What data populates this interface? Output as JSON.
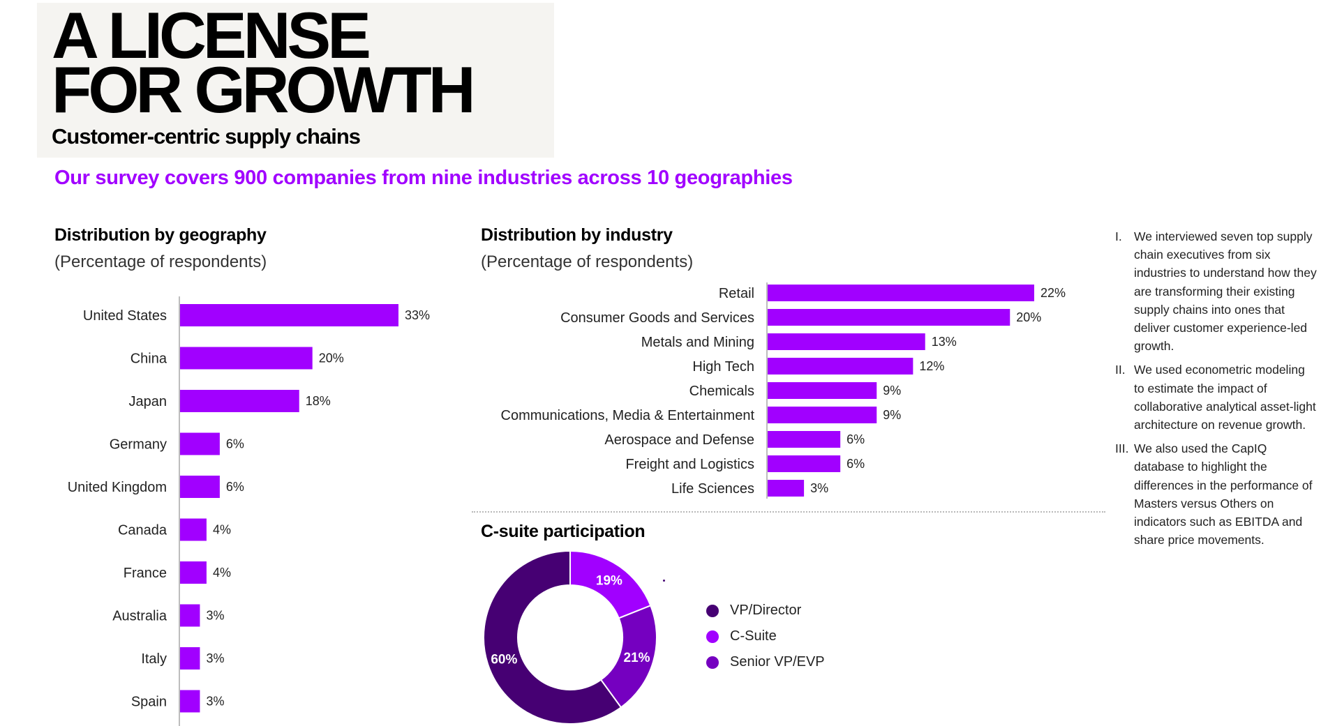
{
  "header": {
    "title_line1": "A LICENSE",
    "title_line2": "FOR GROWTH",
    "subtitle": "Customer-centric supply chains",
    "headline": "Our survey covers 900 companies from nine industries across 10 geographies"
  },
  "colors": {
    "bar": "#a100ff",
    "vp_director": "#460073",
    "c_suite": "#a100ff",
    "senior_vp": "#7500c0",
    "headline": "#a100ff"
  },
  "chart_data": [
    {
      "type": "bar",
      "orientation": "horizontal",
      "title": "Distribution by geography",
      "subtitle": "(Percentage of respondents)",
      "categories": [
        "United States",
        "China",
        "Japan",
        "Germany",
        "United Kingdom",
        "Canada",
        "France",
        "Australia",
        "Italy",
        "Spain"
      ],
      "values": [
        33,
        20,
        18,
        6,
        6,
        4,
        4,
        3,
        3,
        3
      ],
      "labels": [
        "33%",
        "20%",
        "18%",
        "6%",
        "6%",
        "4%",
        "4%",
        "3%",
        "3%",
        "3%"
      ],
      "xlim": [
        0,
        33
      ]
    },
    {
      "type": "bar",
      "orientation": "horizontal",
      "title": "Distribution by industry",
      "subtitle": "(Percentage of respondents)",
      "categories": [
        "Retail",
        "Consumer Goods and Services",
        "Metals and Mining",
        "High Tech",
        "Chemicals",
        "Communications, Media & Entertainment",
        "Aerospace and Defense",
        "Freight and Logistics",
        "Life Sciences"
      ],
      "values": [
        22,
        20,
        13,
        12,
        9,
        9,
        6,
        6,
        3
      ],
      "labels": [
        "22%",
        "20%",
        "13%",
        "12%",
        "9%",
        "9%",
        "6%",
        "6%",
        "3%"
      ],
      "xlim": [
        0,
        22
      ]
    },
    {
      "type": "pie",
      "donut": true,
      "title": "C-suite participation",
      "segments": [
        {
          "name": "C-Suite",
          "value": 19,
          "label": "19%"
        },
        {
          "name": "Senior VP/EVP",
          "value": 21,
          "label": "21%"
        },
        {
          "name": "VP/Director",
          "value": 60,
          "label": "60%"
        }
      ],
      "legend": [
        "VP/Director",
        "C-Suite",
        "Senior VP/EVP"
      ]
    }
  ],
  "notes": [
    {
      "num": "I.",
      "text": "We interviewed seven top supply chain executives from six industries to understand how they are transforming their existing supply chains into ones that deliver customer experience-led growth."
    },
    {
      "num": "II.",
      "text": "We used econometric modeling to estimate the impact of collaborative analytical asset-light architecture on revenue growth."
    },
    {
      "num": "III.",
      "text": "We also used the CapIQ database to highlight the differences in the performance of Masters versus Others on indicators such as EBITDA and share price movements."
    }
  ]
}
